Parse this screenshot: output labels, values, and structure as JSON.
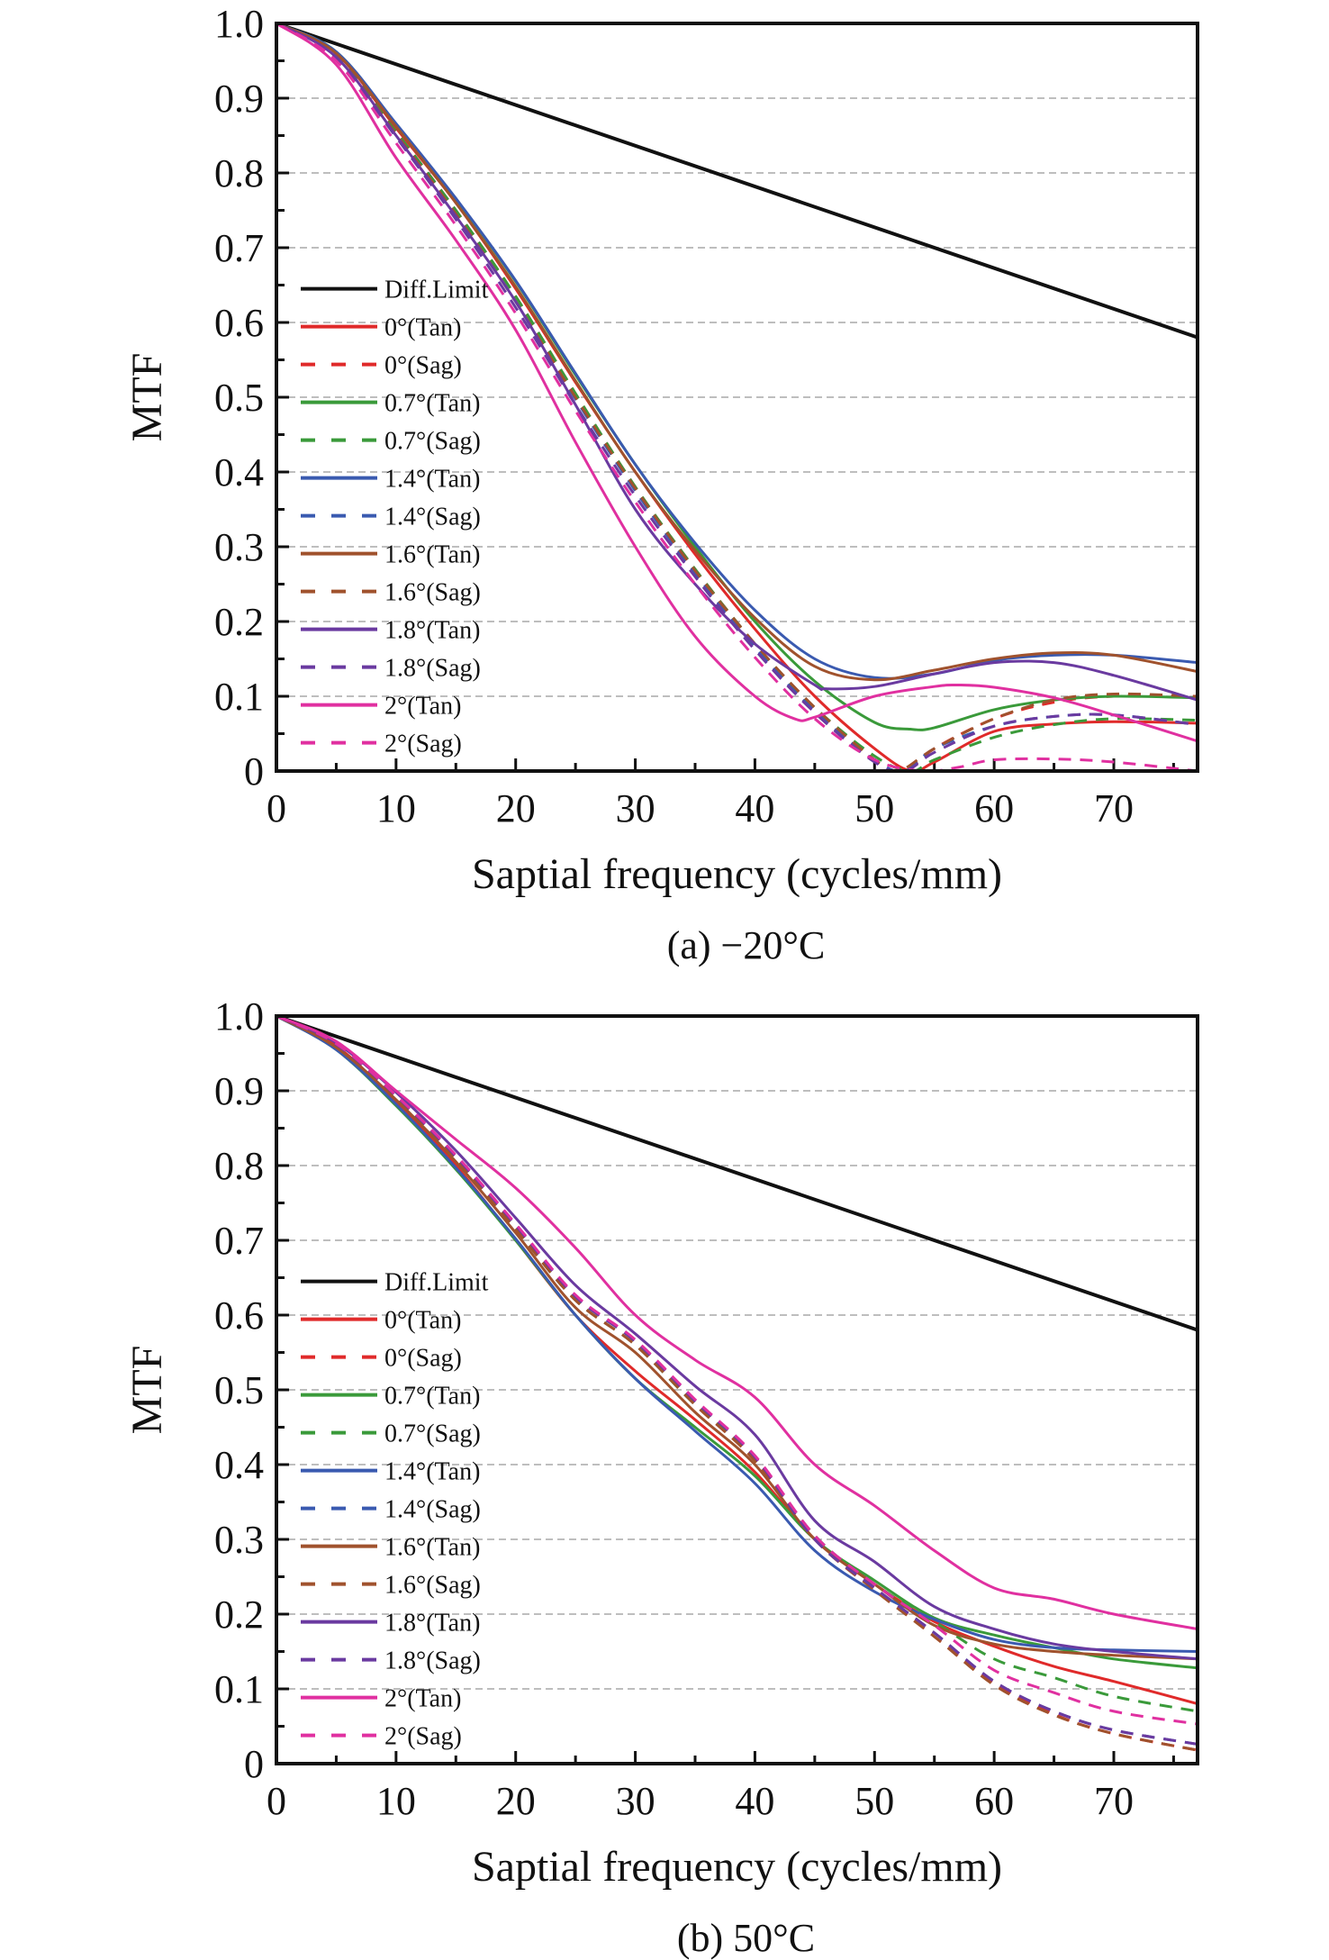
{
  "chart_data": [
    {
      "type": "line",
      "caption": "(a) −20°C",
      "xlabel": "Saptial frequency (cycles/mm)",
      "ylabel": "MTF",
      "xlim": [
        0,
        77
      ],
      "ylim": [
        0,
        1.0
      ],
      "xticks": [
        "0",
        "10",
        "20",
        "30",
        "40",
        "50",
        "60",
        "70"
      ],
      "yticks": [
        "0",
        "0.1",
        "0.2",
        "0.3",
        "0.4",
        "0.5",
        "0.6",
        "0.7",
        "0.8",
        "0.9",
        "1.0"
      ],
      "grid": "horizontal dashed",
      "legend_position": "center-left",
      "series": [
        {
          "name": "Diff.Limit",
          "color": "#111111",
          "dash": false,
          "x": [
            0,
            77
          ],
          "y": [
            1.0,
            0.58
          ]
        },
        {
          "name": "0°(Tan)",
          "color": "#e02a2a",
          "dash": false,
          "x": [
            0,
            5,
            10,
            15,
            20,
            25,
            30,
            35,
            40,
            45,
            50,
            53,
            55,
            60,
            65,
            70,
            77
          ],
          "y": [
            1.0,
            0.96,
            0.86,
            0.76,
            0.645,
            0.52,
            0.4,
            0.29,
            0.19,
            0.1,
            0.03,
            0.0,
            0.012,
            0.053,
            0.063,
            0.066,
            0.064
          ]
        },
        {
          "name": "0°(Sag)",
          "color": "#e02a2a",
          "dash": true,
          "x": [
            0,
            5,
            10,
            15,
            20,
            25,
            30,
            35,
            40,
            45,
            50,
            52.5,
            55,
            60,
            65,
            70,
            77
          ],
          "y": [
            1.0,
            0.955,
            0.855,
            0.75,
            0.635,
            0.505,
            0.38,
            0.27,
            0.17,
            0.08,
            0.015,
            0.0,
            0.03,
            0.07,
            0.092,
            0.1,
            0.1
          ]
        },
        {
          "name": "0.7°(Tan)",
          "color": "#3a9a3a",
          "dash": false,
          "x": [
            0,
            5,
            10,
            15,
            20,
            25,
            30,
            35,
            40,
            45,
            50,
            53,
            55,
            60,
            65,
            70,
            77
          ],
          "y": [
            1.0,
            0.962,
            0.865,
            0.765,
            0.655,
            0.53,
            0.41,
            0.3,
            0.2,
            0.12,
            0.065,
            0.056,
            0.058,
            0.082,
            0.095,
            0.1,
            0.098
          ]
        },
        {
          "name": "0.7°(Sag)",
          "color": "#3a9a3a",
          "dash": true,
          "x": [
            0,
            5,
            10,
            15,
            20,
            25,
            30,
            35,
            40,
            45,
            50,
            53,
            55,
            60,
            65,
            70,
            77
          ],
          "y": [
            1.0,
            0.955,
            0.855,
            0.75,
            0.635,
            0.505,
            0.38,
            0.27,
            0.17,
            0.085,
            0.02,
            0.0,
            0.015,
            0.045,
            0.062,
            0.07,
            0.068
          ]
        },
        {
          "name": "1.4°(Tan)",
          "color": "#3a5ab0",
          "dash": false,
          "x": [
            0,
            5,
            10,
            15,
            20,
            25,
            30,
            35,
            40,
            45,
            50,
            55,
            60,
            65,
            70,
            77
          ],
          "y": [
            1.0,
            0.962,
            0.866,
            0.766,
            0.656,
            0.532,
            0.41,
            0.305,
            0.215,
            0.15,
            0.125,
            0.13,
            0.148,
            0.155,
            0.155,
            0.145
          ]
        },
        {
          "name": "1.4°(Sag)",
          "color": "#3a5ab0",
          "dash": true,
          "x": [
            0,
            5,
            10,
            15,
            20,
            25,
            30,
            35,
            40,
            45,
            50,
            52.5,
            55,
            60,
            65,
            70,
            77
          ],
          "y": [
            1.0,
            0.955,
            0.852,
            0.745,
            0.628,
            0.498,
            0.375,
            0.265,
            0.165,
            0.08,
            0.015,
            0.0,
            0.03,
            0.06,
            0.073,
            0.075,
            0.062
          ]
        },
        {
          "name": "1.6°(Tan)",
          "color": "#a0522d",
          "dash": false,
          "x": [
            0,
            5,
            10,
            15,
            20,
            25,
            30,
            35,
            40,
            45,
            50,
            55,
            60,
            65,
            70,
            77
          ],
          "y": [
            1.0,
            0.96,
            0.862,
            0.76,
            0.648,
            0.522,
            0.4,
            0.295,
            0.205,
            0.14,
            0.122,
            0.135,
            0.15,
            0.158,
            0.155,
            0.133
          ]
        },
        {
          "name": "1.6°(Sag)",
          "color": "#a0522d",
          "dash": true,
          "x": [
            0,
            5,
            10,
            15,
            20,
            25,
            30,
            35,
            40,
            45,
            50,
            52,
            55,
            60,
            65,
            70,
            77
          ],
          "y": [
            1.0,
            0.955,
            0.852,
            0.745,
            0.628,
            0.5,
            0.378,
            0.268,
            0.17,
            0.085,
            0.015,
            0.0,
            0.03,
            0.07,
            0.095,
            0.103,
            0.1
          ]
        },
        {
          "name": "1.8°(Tan)",
          "color": "#6a3aa0",
          "dash": false,
          "x": [
            0,
            5,
            10,
            15,
            20,
            25,
            30,
            35,
            40,
            45,
            46,
            50,
            55,
            60,
            65,
            70,
            77
          ],
          "y": [
            1.0,
            0.955,
            0.85,
            0.742,
            0.628,
            0.49,
            0.35,
            0.25,
            0.17,
            0.115,
            0.11,
            0.113,
            0.13,
            0.145,
            0.145,
            0.128,
            0.095
          ]
        },
        {
          "name": "1.8°(Sag)",
          "color": "#6a3aa0",
          "dash": true,
          "x": [
            0,
            5,
            10,
            15,
            20,
            25,
            30,
            35,
            40,
            45,
            50,
            52.5,
            55,
            60,
            65,
            70,
            77
          ],
          "y": [
            1.0,
            0.952,
            0.848,
            0.738,
            0.62,
            0.49,
            0.368,
            0.26,
            0.162,
            0.078,
            0.012,
            0.0,
            0.025,
            0.06,
            0.073,
            0.075,
            0.062
          ]
        },
        {
          "name": "2°(Tan)",
          "color": "#e030a0",
          "dash": false,
          "x": [
            0,
            5,
            10,
            15,
            20,
            25,
            30,
            35,
            40,
            43.3,
            45,
            50,
            55,
            57,
            60,
            65,
            70,
            77
          ],
          "y": [
            1.0,
            0.945,
            0.82,
            0.71,
            0.59,
            0.44,
            0.3,
            0.18,
            0.1,
            0.07,
            0.072,
            0.1,
            0.113,
            0.115,
            0.112,
            0.098,
            0.075,
            0.04
          ]
        },
        {
          "name": "2°(Sag)",
          "color": "#e030a0",
          "dash": true,
          "x": [
            0,
            5,
            10,
            15,
            20,
            25,
            30,
            35,
            40,
            45,
            50,
            54,
            57,
            60,
            65,
            70,
            77
          ],
          "y": [
            1.0,
            0.95,
            0.84,
            0.73,
            0.612,
            0.482,
            0.36,
            0.25,
            0.152,
            0.07,
            0.015,
            0.0,
            0.005,
            0.015,
            0.016,
            0.012,
            0.0
          ]
        }
      ]
    },
    {
      "type": "line",
      "caption": "(b) 50°C",
      "xlabel": "Saptial frequency (cycles/mm)",
      "ylabel": "MTF",
      "xlim": [
        0,
        77
      ],
      "ylim": [
        0,
        1.0
      ],
      "xticks": [
        "0",
        "10",
        "20",
        "30",
        "40",
        "50",
        "60",
        "70"
      ],
      "yticks": [
        "0",
        "0.1",
        "0.2",
        "0.3",
        "0.4",
        "0.5",
        "0.6",
        "0.7",
        "0.8",
        "0.9",
        "1.0"
      ],
      "grid": "horizontal dashed",
      "legend_position": "center-left",
      "series": [
        {
          "name": "Diff.Limit",
          "color": "#111111",
          "dash": false,
          "x": [
            0,
            77
          ],
          "y": [
            1.0,
            0.58
          ]
        },
        {
          "name": "0°(Tan)",
          "color": "#e02a2a",
          "dash": false,
          "x": [
            0,
            5,
            10,
            15,
            20,
            25,
            30,
            35,
            40,
            45,
            50,
            55,
            60,
            65,
            70,
            77
          ],
          "y": [
            1.0,
            0.96,
            0.885,
            0.8,
            0.7,
            0.6,
            0.525,
            0.46,
            0.39,
            0.3,
            0.24,
            0.19,
            0.157,
            0.13,
            0.11,
            0.08
          ]
        },
        {
          "name": "0°(Sag)",
          "color": "#e02a2a",
          "dash": true,
          "x": [
            0,
            5,
            10,
            15,
            20,
            25,
            30,
            35,
            40,
            45,
            50,
            55,
            60,
            65,
            70,
            77
          ],
          "y": [
            1.0,
            0.962,
            0.892,
            0.81,
            0.715,
            0.62,
            0.56,
            0.48,
            0.405,
            0.3,
            0.235,
            0.17,
            0.108,
            0.066,
            0.04,
            0.018
          ]
        },
        {
          "name": "0.7°(Tan)",
          "color": "#3a9a3a",
          "dash": false,
          "x": [
            0,
            5,
            10,
            15,
            20,
            25,
            30,
            35,
            40,
            45,
            50,
            55,
            60,
            65,
            70,
            77
          ],
          "y": [
            1.0,
            0.955,
            0.88,
            0.795,
            0.7,
            0.6,
            0.515,
            0.45,
            0.385,
            0.3,
            0.245,
            0.195,
            0.172,
            0.155,
            0.14,
            0.128
          ]
        },
        {
          "name": "0.7°(Sag)",
          "color": "#3a9a3a",
          "dash": true,
          "x": [
            0,
            5,
            10,
            15,
            20,
            25,
            30,
            35,
            40,
            45,
            50,
            55,
            60,
            65,
            70,
            77
          ],
          "y": [
            1.0,
            0.962,
            0.892,
            0.81,
            0.715,
            0.62,
            0.56,
            0.48,
            0.41,
            0.305,
            0.24,
            0.19,
            0.14,
            0.115,
            0.09,
            0.07
          ]
        },
        {
          "name": "1.4°(Tan)",
          "color": "#3a5ab0",
          "dash": false,
          "x": [
            0,
            5,
            10,
            15,
            20,
            25,
            30,
            35,
            40,
            45,
            50,
            55,
            60,
            65,
            70,
            77
          ],
          "y": [
            1.0,
            0.955,
            0.882,
            0.797,
            0.702,
            0.6,
            0.515,
            0.445,
            0.375,
            0.285,
            0.23,
            0.193,
            0.166,
            0.155,
            0.152,
            0.15
          ]
        },
        {
          "name": "1.4°(Sag)",
          "color": "#3a5ab0",
          "dash": true,
          "x": [
            0,
            5,
            10,
            15,
            20,
            25,
            30,
            35,
            40,
            45,
            50,
            55,
            60,
            65,
            70,
            77
          ],
          "y": [
            1.0,
            0.962,
            0.893,
            0.812,
            0.72,
            0.625,
            0.565,
            0.485,
            0.41,
            0.3,
            0.235,
            0.175,
            0.11,
            0.07,
            0.045,
            0.026
          ]
        },
        {
          "name": "1.6°(Tan)",
          "color": "#a0522d",
          "dash": false,
          "x": [
            0,
            5,
            10,
            15,
            20,
            25,
            30,
            35,
            40,
            45,
            50,
            55,
            60,
            65,
            70,
            77
          ],
          "y": [
            1.0,
            0.958,
            0.888,
            0.805,
            0.71,
            0.61,
            0.55,
            0.47,
            0.4,
            0.3,
            0.24,
            0.185,
            0.16,
            0.15,
            0.145,
            0.14
          ]
        },
        {
          "name": "1.6°(Sag)",
          "color": "#a0522d",
          "dash": true,
          "x": [
            0,
            5,
            10,
            15,
            20,
            25,
            30,
            35,
            40,
            45,
            50,
            55,
            60,
            65,
            70,
            77
          ],
          "y": [
            1.0,
            0.962,
            0.892,
            0.81,
            0.715,
            0.62,
            0.56,
            0.48,
            0.405,
            0.3,
            0.232,
            0.17,
            0.105,
            0.065,
            0.04,
            0.018
          ]
        },
        {
          "name": "1.8°(Tan)",
          "color": "#6a3aa0",
          "dash": false,
          "x": [
            0,
            5,
            10,
            15,
            20,
            25,
            30,
            35,
            40,
            45,
            50,
            55,
            60,
            65,
            70,
            77
          ],
          "y": [
            1.0,
            0.964,
            0.898,
            0.82,
            0.73,
            0.64,
            0.575,
            0.505,
            0.44,
            0.325,
            0.27,
            0.21,
            0.18,
            0.16,
            0.15,
            0.14
          ]
        },
        {
          "name": "1.8°(Sag)",
          "color": "#6a3aa0",
          "dash": true,
          "x": [
            0,
            5,
            10,
            15,
            20,
            25,
            30,
            35,
            40,
            45,
            50,
            55,
            60,
            65,
            70,
            77
          ],
          "y": [
            1.0,
            0.962,
            0.893,
            0.812,
            0.72,
            0.625,
            0.565,
            0.485,
            0.41,
            0.3,
            0.235,
            0.175,
            0.11,
            0.07,
            0.045,
            0.026
          ]
        },
        {
          "name": "2°(Tan)",
          "color": "#e030a0",
          "dash": false,
          "x": [
            0,
            5,
            10,
            15,
            20,
            25,
            30,
            35,
            40,
            45,
            50,
            55,
            60,
            65,
            70,
            77
          ],
          "y": [
            1.0,
            0.966,
            0.9,
            0.835,
            0.77,
            0.69,
            0.6,
            0.54,
            0.49,
            0.4,
            0.345,
            0.285,
            0.235,
            0.22,
            0.2,
            0.18
          ]
        },
        {
          "name": "2°(Sag)",
          "color": "#e030a0",
          "dash": true,
          "x": [
            0,
            5,
            10,
            15,
            20,
            25,
            30,
            35,
            40,
            45,
            50,
            55,
            60,
            65,
            70,
            77
          ],
          "y": [
            1.0,
            0.963,
            0.894,
            0.814,
            0.722,
            0.627,
            0.567,
            0.487,
            0.412,
            0.305,
            0.24,
            0.185,
            0.125,
            0.095,
            0.07,
            0.053
          ]
        }
      ]
    }
  ]
}
